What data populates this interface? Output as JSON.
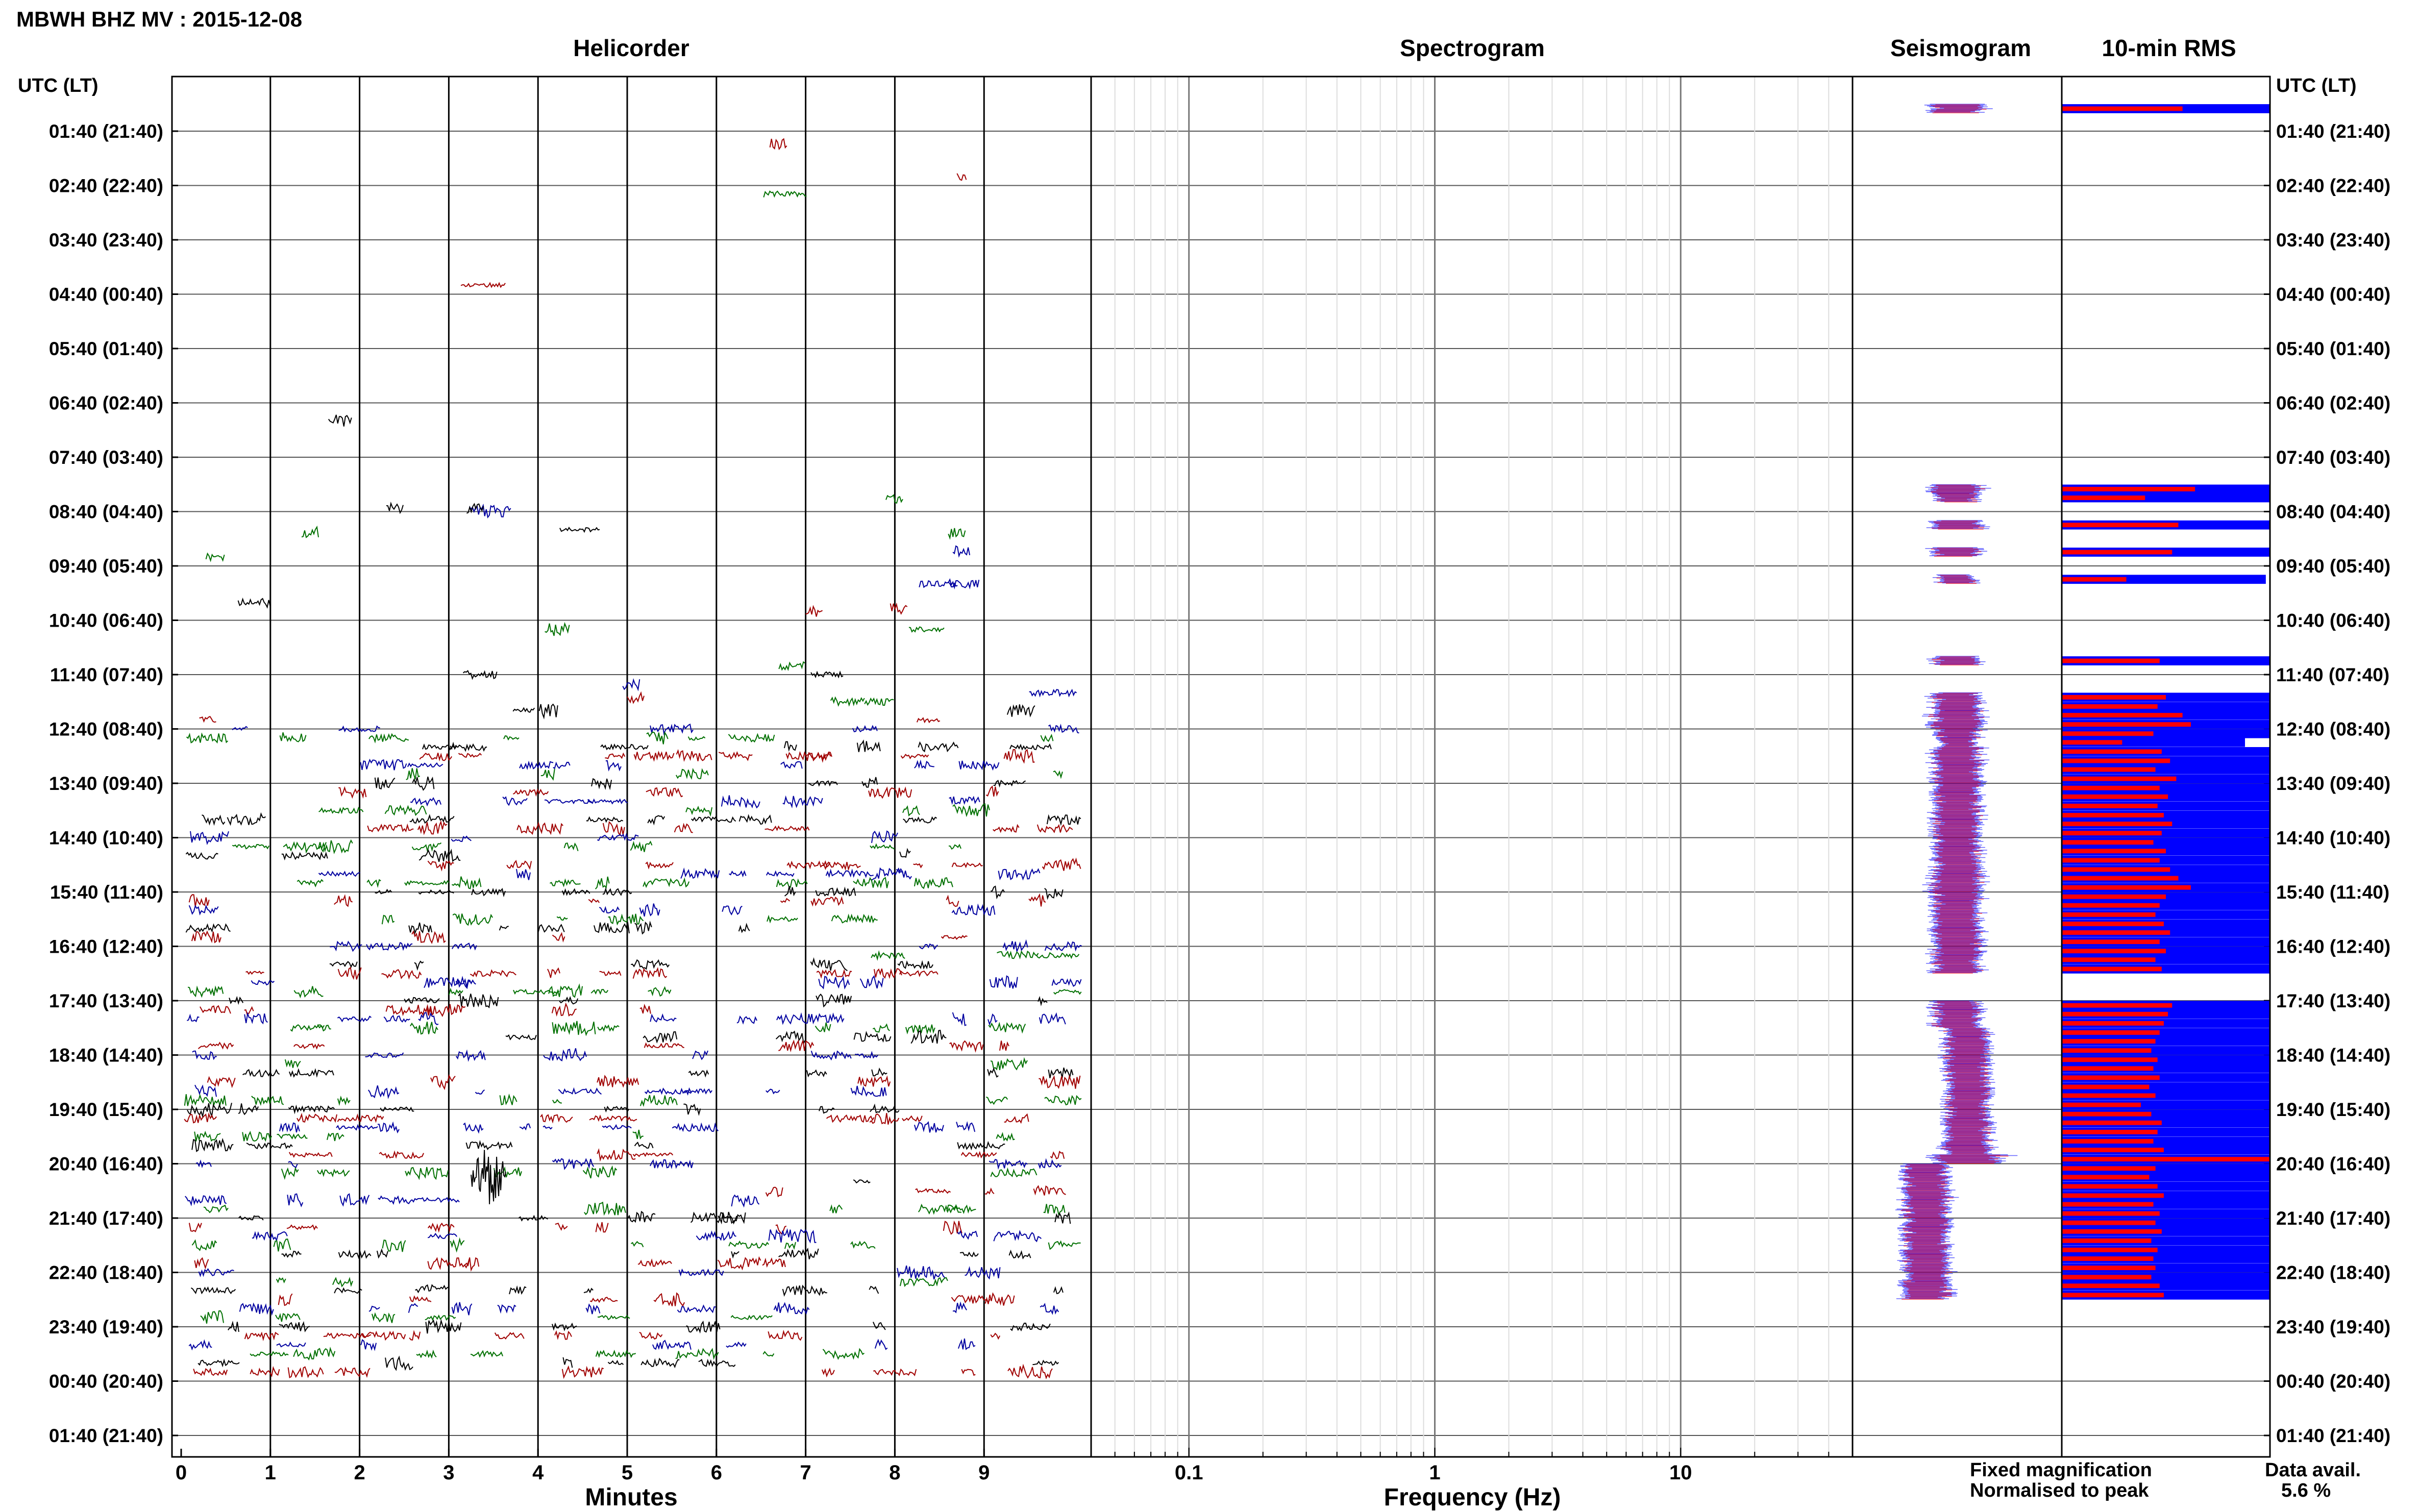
{
  "header": {
    "title": "MBWH BHZ MV : 2015-12-08"
  },
  "panels": {
    "helicorder": "Helicorder",
    "spectrogram": "Spectrogram",
    "seismogram": "Seismogram",
    "rms": "10-min RMS"
  },
  "axes": {
    "left_time_label": "UTC (LT)",
    "right_time_label": "UTC (LT)",
    "helicorder_xlabel": "Minutes",
    "spectrogram_xlabel": "Frequency (Hz)"
  },
  "legend": {
    "fixed": "Fixed magnification",
    "normalised": "Normalised to peak",
    "fixed_color": "#0000ff",
    "normalised_color": "#ff0000"
  },
  "data_availability": {
    "label": "Data avail.",
    "value": "5.6 %"
  },
  "chart_data": {
    "type": "line",
    "time_labels": [
      "01:40 (21:40)",
      "02:40 (22:40)",
      "03:40 (23:40)",
      "04:40 (00:40)",
      "05:40 (01:40)",
      "06:40 (02:40)",
      "07:40 (03:40)",
      "08:40 (04:40)",
      "09:40 (05:40)",
      "10:40 (06:40)",
      "11:40 (07:40)",
      "12:40 (08:40)",
      "13:40 (09:40)",
      "14:40 (10:40)",
      "15:40 (11:40)",
      "16:40 (12:40)",
      "17:40 (13:40)",
      "18:40 (14:40)",
      "19:40 (15:40)",
      "20:40 (16:40)",
      "21:40 (17:40)",
      "22:40 (18:40)",
      "23:40 (19:40)",
      "00:40 (20:40)",
      "01:40 (21:40)"
    ],
    "helicorder_x_ticks": [
      0,
      1,
      2,
      3,
      4,
      5,
      6,
      7,
      8,
      9
    ],
    "helicorder_xlim": [
      0,
      10.2
    ],
    "spectrogram_x_ticks": [
      "0.1",
      "1",
      "10"
    ],
    "spectrogram_xlim": [
      0.04,
      50
    ],
    "trace_colors": [
      "#000000",
      "#a00000",
      "#0000a0",
      "#007000"
    ],
    "rms_rows": [
      {
        "start_hour": 1.17,
        "fixed": 1.0,
        "normalised": 0.58
      },
      {
        "start_hour": 8.17,
        "fixed": 1.0,
        "normalised": 0.64
      },
      {
        "start_hour": 8.33,
        "fixed": 1.0,
        "normalised": 0.4
      },
      {
        "start_hour": 8.83,
        "fixed": 1.0,
        "normalised": 0.56
      },
      {
        "start_hour": 9.33,
        "fixed": 1.0,
        "normalised": 0.53
      },
      {
        "start_hour": 9.83,
        "fixed": 0.98,
        "normalised": 0.31
      },
      {
        "start_hour": 11.33,
        "fixed": 1.0,
        "normalised": 0.47
      },
      {
        "start_hour": 12.0,
        "fixed": 1.0,
        "normalised": 0.5
      },
      {
        "start_hour": 12.17,
        "fixed": 1.0,
        "normalised": 0.46
      },
      {
        "start_hour": 12.33,
        "fixed": 1.0,
        "normalised": 0.58
      },
      {
        "start_hour": 12.5,
        "fixed": 1.0,
        "normalised": 0.62
      },
      {
        "start_hour": 12.67,
        "fixed": 1.0,
        "normalised": 0.44
      },
      {
        "start_hour": 12.83,
        "fixed": 0.88,
        "normalised": 0.29
      },
      {
        "start_hour": 13.0,
        "fixed": 1.0,
        "normalised": 0.48
      },
      {
        "start_hour": 13.17,
        "fixed": 1.0,
        "normalised": 0.52
      },
      {
        "start_hour": 13.33,
        "fixed": 1.0,
        "normalised": 0.45
      },
      {
        "start_hour": 13.5,
        "fixed": 1.0,
        "normalised": 0.55
      },
      {
        "start_hour": 13.67,
        "fixed": 1.0,
        "normalised": 0.47
      },
      {
        "start_hour": 13.83,
        "fixed": 1.0,
        "normalised": 0.51
      },
      {
        "start_hour": 14.0,
        "fixed": 1.0,
        "normalised": 0.46
      },
      {
        "start_hour": 14.17,
        "fixed": 1.0,
        "normalised": 0.49
      },
      {
        "start_hour": 14.33,
        "fixed": 1.0,
        "normalised": 0.53
      },
      {
        "start_hour": 14.5,
        "fixed": 1.0,
        "normalised": 0.48
      },
      {
        "start_hour": 14.67,
        "fixed": 1.0,
        "normalised": 0.44
      },
      {
        "start_hour": 14.83,
        "fixed": 1.0,
        "normalised": 0.5
      },
      {
        "start_hour": 15.0,
        "fixed": 1.0,
        "normalised": 0.47
      },
      {
        "start_hour": 15.17,
        "fixed": 1.0,
        "normalised": 0.52
      },
      {
        "start_hour": 15.33,
        "fixed": 1.0,
        "normalised": 0.56
      },
      {
        "start_hour": 15.5,
        "fixed": 1.0,
        "normalised": 0.62
      },
      {
        "start_hour": 15.67,
        "fixed": 1.0,
        "normalised": 0.5
      },
      {
        "start_hour": 15.83,
        "fixed": 1.0,
        "normalised": 0.47
      },
      {
        "start_hour": 16.0,
        "fixed": 1.0,
        "normalised": 0.45
      },
      {
        "start_hour": 16.17,
        "fixed": 1.0,
        "normalised": 0.49
      },
      {
        "start_hour": 16.33,
        "fixed": 1.0,
        "normalised": 0.52
      },
      {
        "start_hour": 16.5,
        "fixed": 1.0,
        "normalised": 0.47
      },
      {
        "start_hour": 16.67,
        "fixed": 1.0,
        "normalised": 0.5
      },
      {
        "start_hour": 16.83,
        "fixed": 1.0,
        "normalised": 0.45
      },
      {
        "start_hour": 17.0,
        "fixed": 1.0,
        "normalised": 0.48
      },
      {
        "start_hour": 17.67,
        "fixed": 1.0,
        "normalised": 0.53
      },
      {
        "start_hour": 17.83,
        "fixed": 1.0,
        "normalised": 0.51
      },
      {
        "start_hour": 18.0,
        "fixed": 1.0,
        "normalised": 0.49
      },
      {
        "start_hour": 18.17,
        "fixed": 1.0,
        "normalised": 0.47
      },
      {
        "start_hour": 18.33,
        "fixed": 1.0,
        "normalised": 0.45
      },
      {
        "start_hour": 18.5,
        "fixed": 1.0,
        "normalised": 0.43
      },
      {
        "start_hour": 18.67,
        "fixed": 1.0,
        "normalised": 0.46
      },
      {
        "start_hour": 18.83,
        "fixed": 1.0,
        "normalised": 0.44
      },
      {
        "start_hour": 19.0,
        "fixed": 1.0,
        "normalised": 0.47
      },
      {
        "start_hour": 19.17,
        "fixed": 1.0,
        "normalised": 0.42
      },
      {
        "start_hour": 19.33,
        "fixed": 1.0,
        "normalised": 0.45
      },
      {
        "start_hour": 19.5,
        "fixed": 1.0,
        "normalised": 0.38
      },
      {
        "start_hour": 19.67,
        "fixed": 1.0,
        "normalised": 0.43
      },
      {
        "start_hour": 19.83,
        "fixed": 1.0,
        "normalised": 0.48
      },
      {
        "start_hour": 20.0,
        "fixed": 1.0,
        "normalised": 0.46
      },
      {
        "start_hour": 20.17,
        "fixed": 1.0,
        "normalised": 0.44
      },
      {
        "start_hour": 20.33,
        "fixed": 1.0,
        "normalised": 0.49
      },
      {
        "start_hour": 20.5,
        "fixed": 1.0,
        "normalised": 1.0
      },
      {
        "start_hour": 20.67,
        "fixed": 1.0,
        "normalised": 0.45
      },
      {
        "start_hour": 20.83,
        "fixed": 1.0,
        "normalised": 0.42
      },
      {
        "start_hour": 21.0,
        "fixed": 1.0,
        "normalised": 0.46
      },
      {
        "start_hour": 21.17,
        "fixed": 1.0,
        "normalised": 0.49
      },
      {
        "start_hour": 21.33,
        "fixed": 1.0,
        "normalised": 0.44
      },
      {
        "start_hour": 21.5,
        "fixed": 1.0,
        "normalised": 0.47
      },
      {
        "start_hour": 21.67,
        "fixed": 1.0,
        "normalised": 0.45
      },
      {
        "start_hour": 21.83,
        "fixed": 1.0,
        "normalised": 0.48
      },
      {
        "start_hour": 22.0,
        "fixed": 1.0,
        "normalised": 0.43
      },
      {
        "start_hour": 22.17,
        "fixed": 1.0,
        "normalised": 0.46
      },
      {
        "start_hour": 22.33,
        "fixed": 1.0,
        "normalised": 0.44
      },
      {
        "start_hour": 22.5,
        "fixed": 1.0,
        "normalised": 0.45
      },
      {
        "start_hour": 22.67,
        "fixed": 1.0,
        "normalised": 0.43
      },
      {
        "start_hour": 22.83,
        "fixed": 1.0,
        "normalised": 0.47
      },
      {
        "start_hour": 23.0,
        "fixed": 1.0,
        "normalised": 0.49
      }
    ]
  }
}
